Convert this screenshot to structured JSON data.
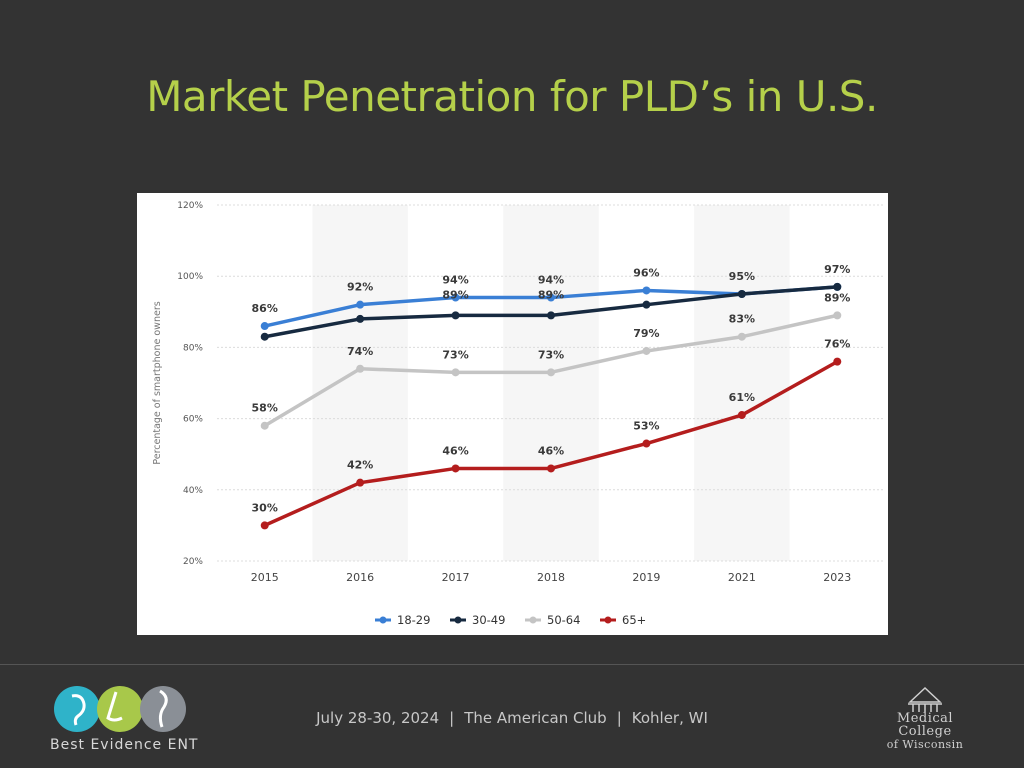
{
  "slide": {
    "title": "Market Penetration for PLD’s in U.S.",
    "footer": {
      "date": "July 28-30, 2024",
      "venue": "The American Club",
      "location": "Kohler, WI",
      "separator": "|"
    },
    "logo_left": {
      "caption_main": "Best Evidence ",
      "caption_accent": "ENT",
      "circle_colors": [
        "#2fb3c9",
        "#a8c84a",
        "#8a8f96"
      ]
    },
    "logo_right": {
      "line1": "Medical",
      "line2": "College",
      "line3": "of Wisconsin"
    }
  },
  "chart_data": {
    "type": "line",
    "ylabel": "Percentage of smartphone owners",
    "ylim": [
      20,
      120
    ],
    "yticks": [
      20,
      40,
      60,
      80,
      100,
      120
    ],
    "ytick_labels": [
      "20%",
      "40%",
      "60%",
      "80%",
      "100%",
      "120%"
    ],
    "categories": [
      "2015",
      "2016",
      "2017",
      "2018",
      "2019",
      "2021",
      "2023"
    ],
    "grid": true,
    "legend_position": "bottom-center",
    "series": [
      {
        "name": "18-29",
        "color": "#3a7fd5",
        "values": [
          86,
          92,
          94,
          94,
          96,
          95,
          97
        ],
        "labels": [
          "86%",
          "92%",
          "94%",
          "94%",
          "96%",
          "95%",
          "97%"
        ],
        "show_labels": [
          true,
          true,
          true,
          true,
          true,
          true,
          true
        ]
      },
      {
        "name": "30-49",
        "color": "#172a40",
        "values": [
          83,
          88,
          89,
          89,
          92,
          95,
          97
        ],
        "labels": [
          "",
          "",
          "89%",
          "89%",
          "",
          "",
          ""
        ],
        "show_labels": [
          false,
          false,
          true,
          true,
          false,
          false,
          false
        ]
      },
      {
        "name": "50-64",
        "color": "#c4c4c4",
        "values": [
          58,
          74,
          73,
          73,
          79,
          83,
          89
        ],
        "labels": [
          "58%",
          "74%",
          "73%",
          "73%",
          "79%",
          "83%",
          "89%"
        ],
        "show_labels": [
          true,
          true,
          true,
          true,
          true,
          true,
          true
        ]
      },
      {
        "name": "65+",
        "color": "#b41d1d",
        "values": [
          30,
          42,
          46,
          46,
          53,
          61,
          76
        ],
        "labels": [
          "30%",
          "42%",
          "46%",
          "46%",
          "53%",
          "61%",
          "76%"
        ],
        "show_labels": [
          true,
          true,
          true,
          true,
          true,
          true,
          true
        ]
      }
    ]
  }
}
